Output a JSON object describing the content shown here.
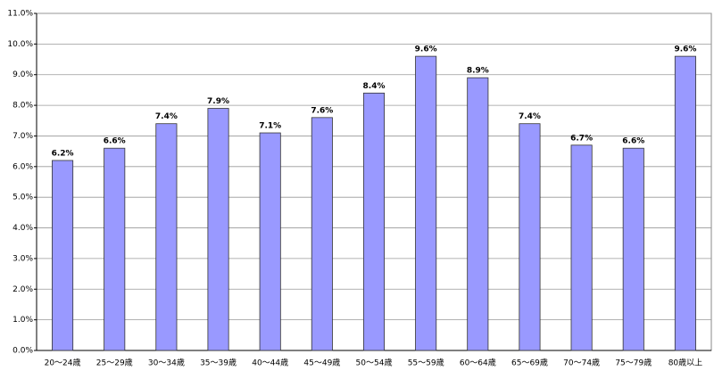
{
  "chart_data": {
    "type": "bar",
    "categories": [
      "20～24歳",
      "25～29歳",
      "30～34歳",
      "35～39歳",
      "40～44歳",
      "45～49歳",
      "50～54歳",
      "55～59歳",
      "60～64歳",
      "65～69歳",
      "70～74歳",
      "75～79歳",
      "80歳以上"
    ],
    "values": [
      6.2,
      6.6,
      7.4,
      7.9,
      7.1,
      7.6,
      8.4,
      9.6,
      8.9,
      7.4,
      6.7,
      6.6,
      9.6
    ],
    "value_labels": [
      "6.2%",
      "6.6%",
      "7.4%",
      "7.9%",
      "7.1%",
      "7.6%",
      "8.4%",
      "9.6%",
      "8.9%",
      "7.4%",
      "6.7%",
      "6.6%",
      "9.6%"
    ],
    "color": "#9999ff",
    "ylim": [
      0,
      11
    ],
    "yticks": [
      {
        "value": 0,
        "label": "0.0%"
      },
      {
        "value": 1,
        "label": "1.0%"
      },
      {
        "value": 2,
        "label": "2.0%"
      },
      {
        "value": 3,
        "label": "3.0%"
      },
      {
        "value": 4,
        "label": "4.0%"
      },
      {
        "value": 5,
        "label": "5.0%"
      },
      {
        "value": 6,
        "label": "6.0%"
      },
      {
        "value": 7,
        "label": "7.0%"
      },
      {
        "value": 8,
        "label": "8.0%"
      },
      {
        "value": 9,
        "label": "9.0%"
      },
      {
        "value": 10,
        "label": "10.0%"
      },
      {
        "value": 11,
        "label": "11.0%"
      }
    ],
    "grid": true
  }
}
